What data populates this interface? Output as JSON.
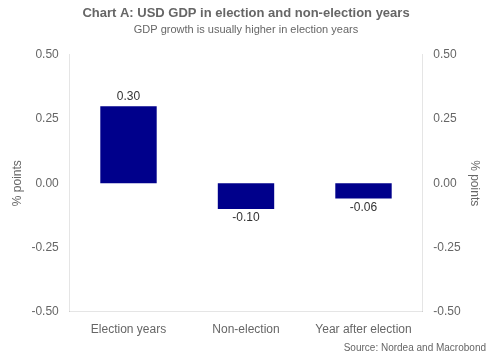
{
  "chart_data": {
    "type": "bar",
    "title": "Chart A: USD GDP in election and non-election years",
    "subtitle": "GDP growth is usually higher in election years",
    "categories": [
      "Election years",
      "Non-election",
      "Year after election"
    ],
    "values": [
      0.3,
      -0.1,
      -0.06
    ],
    "value_labels": [
      "0.30",
      "-0.10",
      "-0.06"
    ],
    "data_labels": true,
    "color": "#00008B",
    "ylabel": "% points",
    "y2label": "% points",
    "ylim": [
      -0.5,
      0.5
    ],
    "yticks": [
      {
        "value": -0.5,
        "label": "-0.50"
      },
      -0.25,
      {
        "value": 0,
        "label": "0.00"
      },
      0.25,
      {
        "value": 0.5,
        "label": "0.50"
      }
    ],
    "y2lim": [
      -0.5,
      0.5
    ],
    "y2ticks": [
      {
        "value": -0.5,
        "label": "-0.50"
      },
      -0.25,
      {
        "value": 0,
        "label": "0.00"
      },
      0.25,
      {
        "value": 0.5,
        "label": "0.50"
      }
    ],
    "grid": false,
    "source": "Source: Nordea and Macrobond"
  }
}
